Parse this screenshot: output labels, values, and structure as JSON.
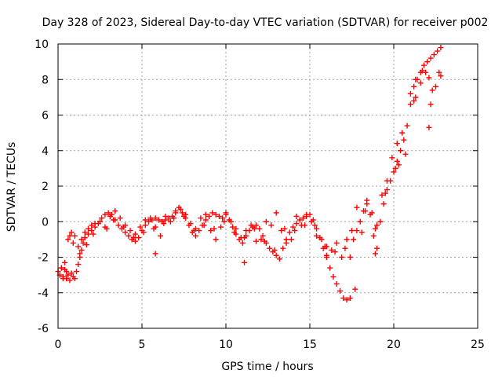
{
  "chart_data": {
    "type": "scatter",
    "title": "Day 328 of 2023, Sidereal Day-to-day VTEC variation (SDTVAR) for receiver p002",
    "xlabel": "GPS time / hours",
    "ylabel": "SDTVAR / TECUs",
    "xlim": [
      0,
      25
    ],
    "ylim": [
      -6,
      10
    ],
    "xticks": [
      0,
      5,
      10,
      15,
      20,
      25
    ],
    "yticks": [
      -6,
      -4,
      -2,
      0,
      2,
      4,
      6,
      8,
      10
    ],
    "grid": true,
    "legend": "none",
    "marker": "+",
    "series": [
      {
        "name": "SDTVAR",
        "color": "#ff0000",
        "x": [
          0.0,
          0.1,
          0.2,
          0.3,
          0.4,
          0.5,
          0.6,
          0.7,
          0.8,
          0.9,
          1.0,
          1.1,
          1.2,
          1.3,
          1.4,
          1.5,
          1.6,
          1.8,
          2.0,
          2.2,
          2.4,
          2.6,
          2.8,
          3.0,
          3.2,
          3.4,
          3.6,
          3.8,
          4.0,
          4.2,
          4.4,
          4.6,
          4.8,
          5.0,
          5.2,
          5.4,
          5.6,
          5.8,
          6.0,
          6.2,
          6.4,
          6.6,
          6.8,
          7.0,
          7.2,
          7.4,
          7.6,
          7.8,
          8.0,
          8.2,
          8.4,
          8.6,
          8.8,
          9.0,
          9.2,
          9.4,
          9.6,
          9.8,
          10.0,
          10.2,
          10.4,
          10.6,
          10.8,
          11.0,
          11.2,
          11.4,
          11.6,
          11.8,
          12.0,
          12.2,
          12.4,
          12.6,
          12.8,
          13.0,
          13.2,
          13.4,
          13.6,
          13.8,
          14.0,
          14.2,
          14.4,
          14.6,
          14.8,
          15.0,
          15.2,
          15.4,
          15.6,
          15.8,
          16.0,
          16.2,
          16.4,
          16.6,
          16.8,
          17.0,
          17.2,
          17.4,
          17.6,
          17.8,
          18.0,
          18.2,
          18.4,
          18.6,
          18.8,
          19.0,
          19.2,
          19.4,
          19.6,
          19.8,
          20.0,
          20.2,
          20.4,
          20.6,
          20.8,
          21.0,
          21.2,
          21.4,
          21.6,
          21.8,
          22.0,
          22.2,
          22.4,
          22.6,
          22.8,
          0.2,
          0.4,
          0.6,
          0.8,
          1.0,
          1.2,
          1.4,
          1.6,
          1.8,
          2.0,
          2.2,
          2.5,
          2.8,
          3.1,
          3.4,
          3.7,
          4.0,
          4.3,
          4.6,
          4.9,
          5.2,
          5.5,
          5.8,
          6.1,
          6.4,
          6.7,
          7.0,
          7.3,
          7.6,
          7.9,
          8.2,
          8.5,
          8.8,
          9.1,
          9.4,
          9.7,
          10.0,
          10.3,
          10.6,
          10.9,
          11.2,
          11.5,
          11.8,
          12.1,
          12.4,
          12.7,
          13.0,
          13.3,
          13.6,
          13.9,
          14.2,
          14.5,
          14.8,
          15.1,
          15.4,
          15.7,
          16.0,
          16.3,
          16.6,
          16.9,
          17.2,
          17.5,
          17.8,
          18.1,
          18.4,
          18.7,
          19.0,
          19.3,
          19.6,
          19.9,
          20.2,
          20.5,
          21.0,
          21.3,
          21.6,
          21.9,
          22.2,
          22.5,
          22.8,
          0.3,
          0.5,
          0.7,
          0.9,
          1.3,
          1.7,
          2.1,
          2.9,
          3.3,
          3.9,
          4.5,
          5.1,
          5.7,
          6.3,
          6.9,
          7.5,
          8.1,
          8.7,
          9.3,
          9.9,
          10.5,
          11.1,
          11.7,
          12.3,
          12.9,
          13.5,
          14.1,
          14.7,
          15.3,
          15.9,
          16.5,
          17.1,
          17.7,
          18.3,
          18.9,
          19.5,
          20.1,
          20.7,
          21.3,
          21.7,
          22.1,
          22.3,
          22.7,
          5.8,
          11.1,
          16.0,
          17.4,
          18.9,
          20.3,
          21.2,
          22.1
        ],
        "y": [
          -2.8,
          -3.0,
          -2.6,
          -3.1,
          -2.7,
          -3.2,
          -3.0,
          -3.3,
          -2.9,
          -3.1,
          -3.2,
          -2.8,
          -2.4,
          -2.0,
          -1.6,
          -1.2,
          -0.9,
          -0.7,
          -0.5,
          -0.3,
          -0.1,
          0.2,
          0.4,
          0.5,
          0.4,
          0.1,
          -0.2,
          -0.4,
          -0.6,
          -0.8,
          -1.0,
          -1.1,
          -0.9,
          -0.5,
          -0.2,
          0.0,
          0.1,
          0.2,
          0.1,
          0.0,
          0.1,
          0.2,
          0.3,
          0.6,
          0.8,
          0.5,
          0.2,
          -0.2,
          -0.6,
          -0.8,
          -0.5,
          -0.2,
          0.1,
          0.3,
          0.5,
          0.4,
          0.3,
          0.2,
          0.4,
          0.1,
          -0.3,
          -0.7,
          -1.0,
          -1.2,
          -0.8,
          -0.5,
          -0.3,
          -0.2,
          -0.4,
          -0.8,
          -1.2,
          -1.5,
          -1.7,
          -1.9,
          -2.1,
          -1.5,
          -1.0,
          -0.6,
          -0.3,
          -0.1,
          0.1,
          0.2,
          0.3,
          0.4,
          0.1,
          -0.4,
          -0.9,
          -1.5,
          -2.0,
          -2.6,
          -3.1,
          -3.5,
          -3.9,
          -4.3,
          -4.4,
          -2.0,
          -1.0,
          -0.5,
          0.0,
          0.6,
          1.0,
          0.4,
          -0.8,
          -1.5,
          0.0,
          1.0,
          1.8,
          2.3,
          2.8,
          3.4,
          4.0,
          4.6,
          5.4,
          7.2,
          7.6,
          8.0,
          8.4,
          8.8,
          9.0,
          9.2,
          9.4,
          9.6,
          9.8,
          -2.6,
          -2.3,
          -1.0,
          -0.6,
          -0.8,
          -1.4,
          -1.0,
          -0.6,
          -0.4,
          -0.2,
          -0.1,
          0.0,
          -0.3,
          0.3,
          0.6,
          0.2,
          -0.2,
          -0.5,
          -0.7,
          -0.3,
          0.1,
          0.2,
          -0.3,
          -0.8,
          0.3,
          0.0,
          0.5,
          0.7,
          0.4,
          -0.1,
          -0.4,
          0.2,
          0.4,
          -0.5,
          -1.0,
          -0.3,
          0.5,
          0.0,
          -0.4,
          -0.9,
          -0.5,
          -0.2,
          -1.1,
          -1.0,
          0.0,
          -0.2,
          0.5,
          -0.5,
          -1.2,
          -1.0,
          0.3,
          -0.2,
          0.4,
          0.0,
          -0.8,
          -1.0,
          -1.4,
          -1.6,
          -1.2,
          -2.0,
          -1.0,
          -0.5,
          0.8,
          -0.6,
          1.2,
          0.5,
          -0.2,
          1.5,
          2.3,
          3.6,
          4.4,
          5.0,
          6.6,
          7.0,
          7.8,
          8.4,
          6.6,
          7.6,
          8.2,
          -3.2,
          -2.8,
          -0.8,
          -1.2,
          -1.8,
          -1.3,
          -0.7,
          -0.4,
          0.1,
          -0.3,
          -0.9,
          -0.6,
          -0.4,
          -0.1,
          0.2,
          0.3,
          -0.5,
          -0.2,
          -0.4,
          0.0,
          -0.6,
          -0.9,
          -0.4,
          -1.1,
          -1.6,
          -0.4,
          -0.5,
          -0.2,
          -0.2,
          -1.4,
          -1.7,
          -1.5,
          -3.8,
          0.6,
          -0.4,
          1.6,
          3.0,
          3.8,
          8.0,
          8.5,
          8.1,
          7.4,
          8.4,
          -1.8,
          -2.3,
          -1.9,
          -4.3,
          -1.8,
          3.2,
          6.8,
          5.3
        ]
      }
    ]
  }
}
